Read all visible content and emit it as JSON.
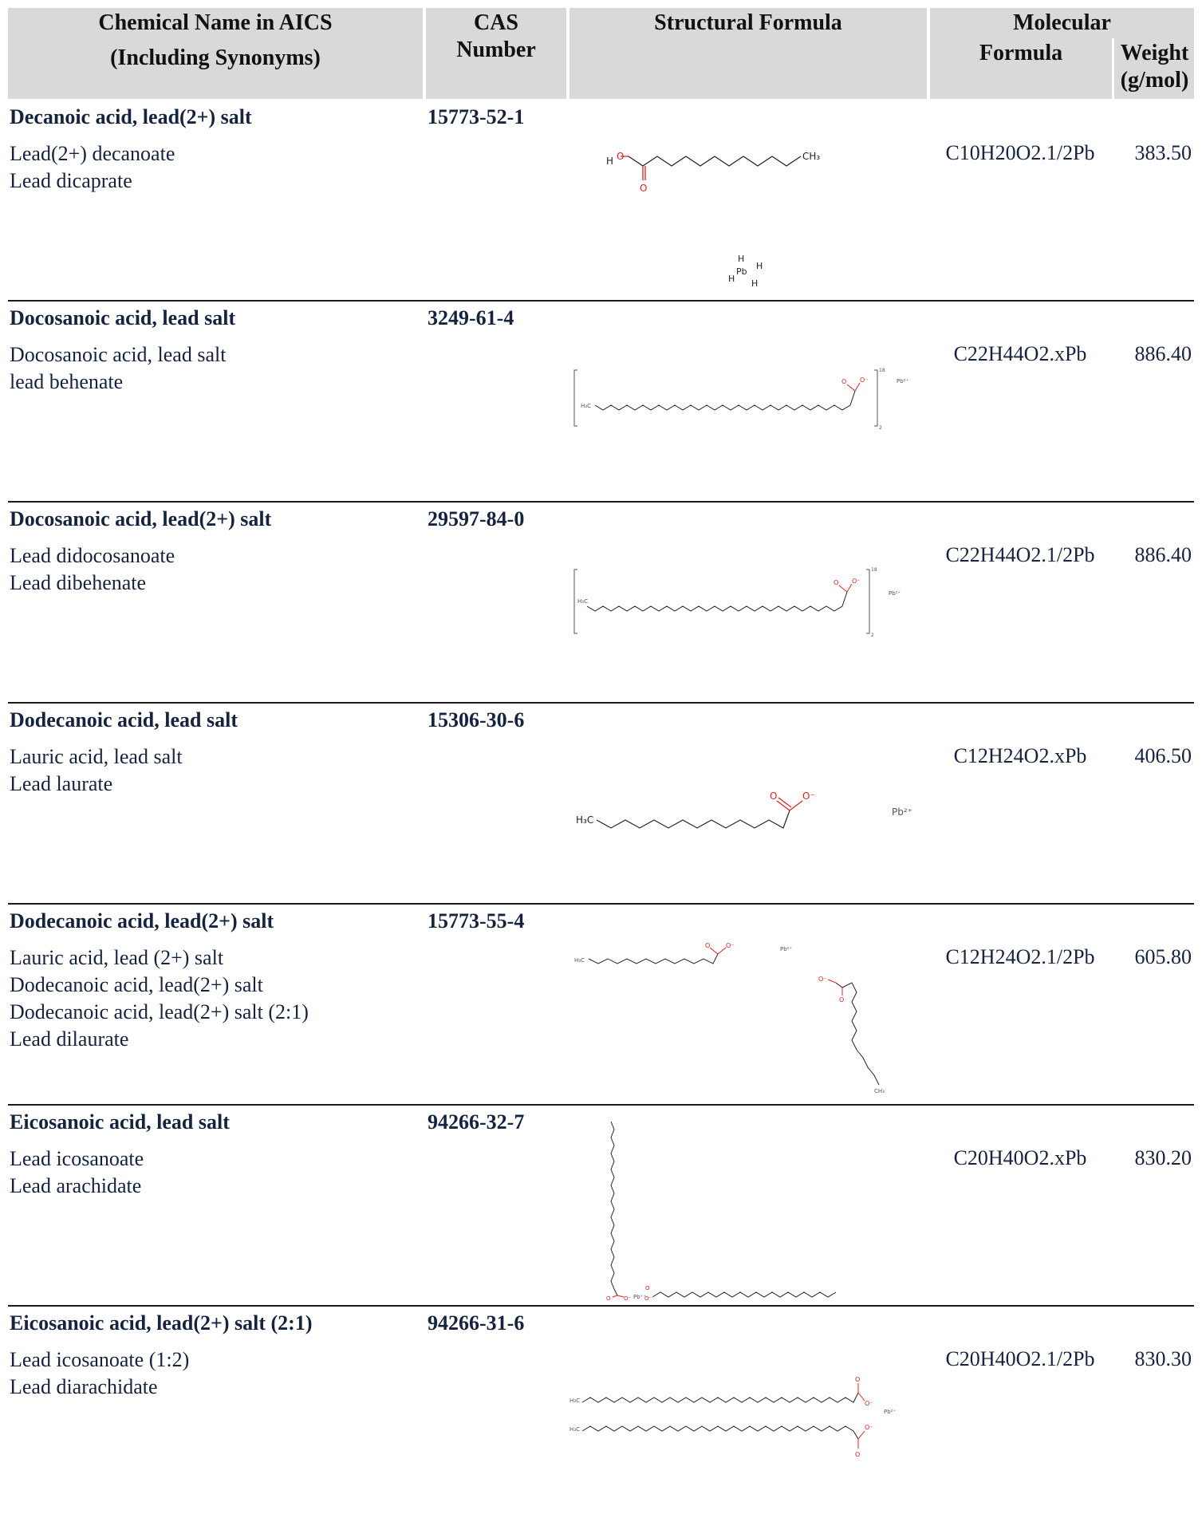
{
  "header": {
    "col_name_line1": "Chemical Name in AICS",
    "col_name_line2": "(Including Synonyms)",
    "col_cas_line1": "CAS",
    "col_cas_line2": "Number",
    "col_structure": "Structural Formula",
    "col_molecular": "Molecular",
    "col_formula": "Formula",
    "col_weight_line1": "Weight",
    "col_weight_line2": "(g/mol)"
  },
  "rows": [
    {
      "name": "Decanoic acid, lead(2+) salt",
      "cas": "15773-52-1",
      "synonyms": [
        "Lead(2+) decanoate",
        "Lead dicaprate"
      ],
      "formula": "C10H20O2.1/2Pb",
      "weight": "383.50"
    },
    {
      "name": "Docosanoic acid, lead salt",
      "cas": "3249-61-4",
      "synonyms": [
        "Docosanoic acid, lead salt",
        "lead behenate"
      ],
      "formula": "C22H44O2.xPb",
      "weight": "886.40"
    },
    {
      "name": "Docosanoic acid, lead(2+) salt",
      "cas": "29597-84-0",
      "synonyms": [
        "Lead didocosanoate",
        "Lead dibehenate"
      ],
      "formula": "C22H44O2.1/2Pb",
      "weight": "886.40"
    },
    {
      "name": "Dodecanoic acid, lead salt",
      "cas": "15306-30-6",
      "synonyms": [
        "Lauric acid, lead salt",
        "Lead laurate"
      ],
      "formula": "C12H24O2.xPb",
      "weight": "406.50"
    },
    {
      "name": "Dodecanoic acid, lead(2+) salt",
      "cas": "15773-55-4",
      "synonyms": [
        "Lauric acid, lead (2+) salt",
        "Dodecanoic acid, lead(2+) salt",
        "Dodecanoic acid, lead(2+) salt (2:1)",
        "Lead dilaurate"
      ],
      "formula": "C12H24O2.1/2Pb",
      "weight": "605.80"
    },
    {
      "name": "Eicosanoic acid, lead salt",
      "cas": "94266-32-7",
      "synonyms": [
        "Lead icosanoate",
        "Lead arachidate"
      ],
      "formula": "C20H40O2.xPb",
      "weight": "830.20"
    },
    {
      "name": "Eicosanoic acid, lead(2+) salt (2:1)",
      "cas": "94266-31-6",
      "synonyms": [
        "Lead icosanoate (1:2)",
        "Lead diarachidate"
      ],
      "formula": "C20H40O2.1/2Pb",
      "weight": "830.30"
    }
  ],
  "structure_labels": {
    "h": "H",
    "o": "O",
    "o_minus": "O⁻",
    "ch3": "CH₃",
    "h3c": "H₃C",
    "pb": "Pb",
    "pb2": "Pb²⁺",
    "pbpp": "Pb⁺⁺",
    "rep18": "18",
    "rep16": "16",
    "two": "2"
  },
  "colors": {
    "header_bg": "#d9d9d9",
    "text": "#15233f",
    "oxygen": "#e02020",
    "bond": "#222222"
  }
}
